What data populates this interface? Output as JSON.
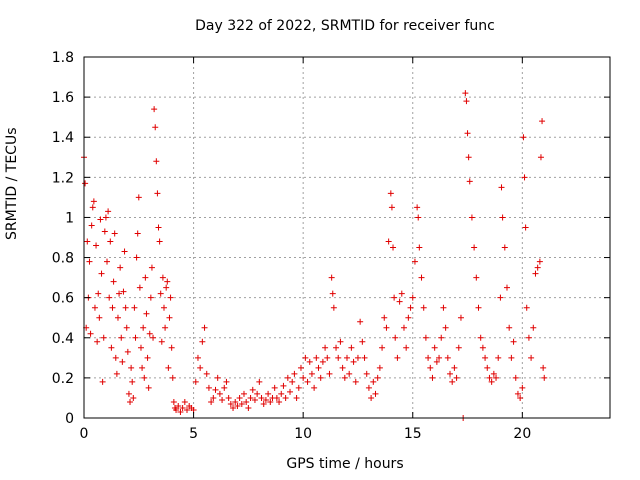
{
  "chart_data": {
    "type": "scatter",
    "title": "Day 322 of 2022, SRMTID for receiver func",
    "xlabel": "GPS time / hours",
    "ylabel": "SRMTID / TECUs",
    "xlim": [
      0,
      24
    ],
    "ylim": [
      0,
      1.8
    ],
    "xticks": [
      0,
      5,
      10,
      15,
      20
    ],
    "xtick_labels": [
      "0",
      "5",
      "10",
      "15",
      "20"
    ],
    "yticks": [
      0,
      0.2,
      0.4,
      0.6,
      0.8,
      1,
      1.2,
      1.4,
      1.6,
      1.8
    ],
    "ytick_labels": [
      "0",
      "0.2",
      "0.4",
      "0.6",
      "0.8",
      "1",
      "1.2",
      "1.4",
      "1.6",
      "1.8"
    ],
    "grid": true,
    "marker": "plus",
    "marker_color": "#e00000",
    "series": [
      {
        "name": "SRMTID",
        "points": [
          [
            0.0,
            1.3
          ],
          [
            0.05,
            1.17
          ],
          [
            0.1,
            0.45
          ],
          [
            0.15,
            0.88
          ],
          [
            0.2,
            0.6
          ],
          [
            0.25,
            0.78
          ],
          [
            0.3,
            0.42
          ],
          [
            0.35,
            0.96
          ],
          [
            0.4,
            1.05
          ],
          [
            0.45,
            1.08
          ],
          [
            0.5,
            0.55
          ],
          [
            0.55,
            0.86
          ],
          [
            0.6,
            0.38
          ],
          [
            0.65,
            0.62
          ],
          [
            0.7,
            0.5
          ],
          [
            0.75,
            0.99
          ],
          [
            0.8,
            0.72
          ],
          [
            0.85,
            0.18
          ],
          [
            0.9,
            0.4
          ],
          [
            0.95,
            0.93
          ],
          [
            1.0,
            1.0
          ],
          [
            1.05,
            0.78
          ],
          [
            1.1,
            1.03
          ],
          [
            1.15,
            0.6
          ],
          [
            1.2,
            0.88
          ],
          [
            1.25,
            0.35
          ],
          [
            1.3,
            0.55
          ],
          [
            1.35,
            0.68
          ],
          [
            1.4,
            0.92
          ],
          [
            1.45,
            0.3
          ],
          [
            1.5,
            0.22
          ],
          [
            1.55,
            0.5
          ],
          [
            1.6,
            0.62
          ],
          [
            1.65,
            0.75
          ],
          [
            1.7,
            0.4
          ],
          [
            1.75,
            0.28
          ],
          [
            1.8,
            0.63
          ],
          [
            1.85,
            0.83
          ],
          [
            1.9,
            0.55
          ],
          [
            1.95,
            0.45
          ],
          [
            2.0,
            0.33
          ],
          [
            2.05,
            0.12
          ],
          [
            2.1,
            0.08
          ],
          [
            2.15,
            0.25
          ],
          [
            2.2,
            0.18
          ],
          [
            2.25,
            0.1
          ],
          [
            2.3,
            0.55
          ],
          [
            2.35,
            0.4
          ],
          [
            2.4,
            0.8
          ],
          [
            2.45,
            0.92
          ],
          [
            2.5,
            1.1
          ],
          [
            2.55,
            0.65
          ],
          [
            2.6,
            0.35
          ],
          [
            2.65,
            0.25
          ],
          [
            2.7,
            0.45
          ],
          [
            2.75,
            0.2
          ],
          [
            2.8,
            0.7
          ],
          [
            2.85,
            0.52
          ],
          [
            2.9,
            0.3
          ],
          [
            2.95,
            0.15
          ],
          [
            3.0,
            0.42
          ],
          [
            3.05,
            0.6
          ],
          [
            3.1,
            0.75
          ],
          [
            3.15,
            0.4
          ],
          [
            3.2,
            1.54
          ],
          [
            3.25,
            1.45
          ],
          [
            3.3,
            1.28
          ],
          [
            3.35,
            1.12
          ],
          [
            3.4,
            0.95
          ],
          [
            3.45,
            0.88
          ],
          [
            3.5,
            0.62
          ],
          [
            3.55,
            0.38
          ],
          [
            3.6,
            0.7
          ],
          [
            3.65,
            0.55
          ],
          [
            3.7,
            0.45
          ],
          [
            3.75,
            0.65
          ],
          [
            3.8,
            0.68
          ],
          [
            3.85,
            0.25
          ],
          [
            3.9,
            0.5
          ],
          [
            3.95,
            0.6
          ],
          [
            4.0,
            0.35
          ],
          [
            4.05,
            0.2
          ],
          [
            4.1,
            0.08
          ],
          [
            4.15,
            0.05
          ],
          [
            4.2,
            0.04
          ],
          [
            4.3,
            0.06
          ],
          [
            4.4,
            0.03
          ],
          [
            4.5,
            0.05
          ],
          [
            4.6,
            0.08
          ],
          [
            4.7,
            0.04
          ],
          [
            4.8,
            0.06
          ],
          [
            4.9,
            0.05
          ],
          [
            5.0,
            0.04
          ],
          [
            5.1,
            0.18
          ],
          [
            5.2,
            0.3
          ],
          [
            5.3,
            0.25
          ],
          [
            5.4,
            0.38
          ],
          [
            5.5,
            0.45
          ],
          [
            5.6,
            0.22
          ],
          [
            5.7,
            0.15
          ],
          [
            5.8,
            0.08
          ],
          [
            5.9,
            0.1
          ],
          [
            6.0,
            0.14
          ],
          [
            6.1,
            0.2
          ],
          [
            6.2,
            0.12
          ],
          [
            6.3,
            0.09
          ],
          [
            6.4,
            0.15
          ],
          [
            6.5,
            0.18
          ],
          [
            6.6,
            0.1
          ],
          [
            6.7,
            0.07
          ],
          [
            6.8,
            0.05
          ],
          [
            6.9,
            0.08
          ],
          [
            7.0,
            0.06
          ],
          [
            7.1,
            0.1
          ],
          [
            7.2,
            0.07
          ],
          [
            7.3,
            0.12
          ],
          [
            7.4,
            0.08
          ],
          [
            7.5,
            0.05
          ],
          [
            7.6,
            0.1
          ],
          [
            7.7,
            0.14
          ],
          [
            7.8,
            0.09
          ],
          [
            7.9,
            0.12
          ],
          [
            8.0,
            0.18
          ],
          [
            8.1,
            0.1
          ],
          [
            8.2,
            0.07
          ],
          [
            8.3,
            0.09
          ],
          [
            8.4,
            0.12
          ],
          [
            8.5,
            0.08
          ],
          [
            8.6,
            0.1
          ],
          [
            8.7,
            0.15
          ],
          [
            8.8,
            0.1
          ],
          [
            8.9,
            0.08
          ],
          [
            9.0,
            0.12
          ],
          [
            9.1,
            0.16
          ],
          [
            9.2,
            0.1
          ],
          [
            9.3,
            0.2
          ],
          [
            9.4,
            0.13
          ],
          [
            9.5,
            0.18
          ],
          [
            9.6,
            0.22
          ],
          [
            9.7,
            0.1
          ],
          [
            9.8,
            0.15
          ],
          [
            9.9,
            0.25
          ],
          [
            10.0,
            0.2
          ],
          [
            10.1,
            0.3
          ],
          [
            10.2,
            0.18
          ],
          [
            10.3,
            0.28
          ],
          [
            10.4,
            0.22
          ],
          [
            10.5,
            0.15
          ],
          [
            10.6,
            0.3
          ],
          [
            10.7,
            0.25
          ],
          [
            10.8,
            0.2
          ],
          [
            10.9,
            0.28
          ],
          [
            11.0,
            0.35
          ],
          [
            11.1,
            0.3
          ],
          [
            11.2,
            0.22
          ],
          [
            11.3,
            0.7
          ],
          [
            11.35,
            0.62
          ],
          [
            11.4,
            0.55
          ],
          [
            11.5,
            0.35
          ],
          [
            11.6,
            0.3
          ],
          [
            11.7,
            0.38
          ],
          [
            11.8,
            0.25
          ],
          [
            11.9,
            0.2
          ],
          [
            12.0,
            0.3
          ],
          [
            12.1,
            0.22
          ],
          [
            12.2,
            0.35
          ],
          [
            12.3,
            0.28
          ],
          [
            12.4,
            0.18
          ],
          [
            12.5,
            0.3
          ],
          [
            12.6,
            0.48
          ],
          [
            12.7,
            0.38
          ],
          [
            12.8,
            0.3
          ],
          [
            12.9,
            0.22
          ],
          [
            13.0,
            0.15
          ],
          [
            13.1,
            0.1
          ],
          [
            13.2,
            0.18
          ],
          [
            13.3,
            0.12
          ],
          [
            13.4,
            0.2
          ],
          [
            13.5,
            0.25
          ],
          [
            13.6,
            0.35
          ],
          [
            13.7,
            0.5
          ],
          [
            13.8,
            0.45
          ],
          [
            13.9,
            0.88
          ],
          [
            14.0,
            1.12
          ],
          [
            14.05,
            1.05
          ],
          [
            14.1,
            0.85
          ],
          [
            14.15,
            0.6
          ],
          [
            14.2,
            0.4
          ],
          [
            14.3,
            0.3
          ],
          [
            14.4,
            0.58
          ],
          [
            14.5,
            0.62
          ],
          [
            14.6,
            0.45
          ],
          [
            14.7,
            0.35
          ],
          [
            14.8,
            0.5
          ],
          [
            14.9,
            0.55
          ],
          [
            15.0,
            0.6
          ],
          [
            15.1,
            0.78
          ],
          [
            15.2,
            1.05
          ],
          [
            15.25,
            1.0
          ],
          [
            15.3,
            0.85
          ],
          [
            15.4,
            0.7
          ],
          [
            15.5,
            0.55
          ],
          [
            15.6,
            0.4
          ],
          [
            15.7,
            0.3
          ],
          [
            15.8,
            0.25
          ],
          [
            15.9,
            0.2
          ],
          [
            16.0,
            0.35
          ],
          [
            16.1,
            0.28
          ],
          [
            16.2,
            0.3
          ],
          [
            16.3,
            0.4
          ],
          [
            16.4,
            0.55
          ],
          [
            16.5,
            0.45
          ],
          [
            16.6,
            0.3
          ],
          [
            16.7,
            0.22
          ],
          [
            16.8,
            0.18
          ],
          [
            16.9,
            0.25
          ],
          [
            17.0,
            0.2
          ],
          [
            17.1,
            0.35
          ],
          [
            17.2,
            0.5
          ],
          [
            17.3,
            0.0
          ],
          [
            17.4,
            1.62
          ],
          [
            17.45,
            1.58
          ],
          [
            17.5,
            1.42
          ],
          [
            17.55,
            1.3
          ],
          [
            17.6,
            1.18
          ],
          [
            17.7,
            1.0
          ],
          [
            17.8,
            0.85
          ],
          [
            17.9,
            0.7
          ],
          [
            18.0,
            0.55
          ],
          [
            18.1,
            0.4
          ],
          [
            18.2,
            0.35
          ],
          [
            18.3,
            0.3
          ],
          [
            18.4,
            0.25
          ],
          [
            18.5,
            0.2
          ],
          [
            18.6,
            0.18
          ],
          [
            18.7,
            0.22
          ],
          [
            18.8,
            0.2
          ],
          [
            18.9,
            0.3
          ],
          [
            19.0,
            0.6
          ],
          [
            19.05,
            1.15
          ],
          [
            19.1,
            1.0
          ],
          [
            19.2,
            0.85
          ],
          [
            19.3,
            0.65
          ],
          [
            19.4,
            0.45
          ],
          [
            19.5,
            0.3
          ],
          [
            19.6,
            0.38
          ],
          [
            19.7,
            0.2
          ],
          [
            19.8,
            0.12
          ],
          [
            19.9,
            0.1
          ],
          [
            20.0,
            0.15
          ],
          [
            20.05,
            1.4
          ],
          [
            20.1,
            1.2
          ],
          [
            20.15,
            0.95
          ],
          [
            20.2,
            0.55
          ],
          [
            20.3,
            0.4
          ],
          [
            20.4,
            0.3
          ],
          [
            20.5,
            0.45
          ],
          [
            20.6,
            0.72
          ],
          [
            20.7,
            0.75
          ],
          [
            20.8,
            0.78
          ],
          [
            20.85,
            1.3
          ],
          [
            20.9,
            1.48
          ],
          [
            20.95,
            0.25
          ],
          [
            21.0,
            0.2
          ]
        ]
      }
    ]
  }
}
